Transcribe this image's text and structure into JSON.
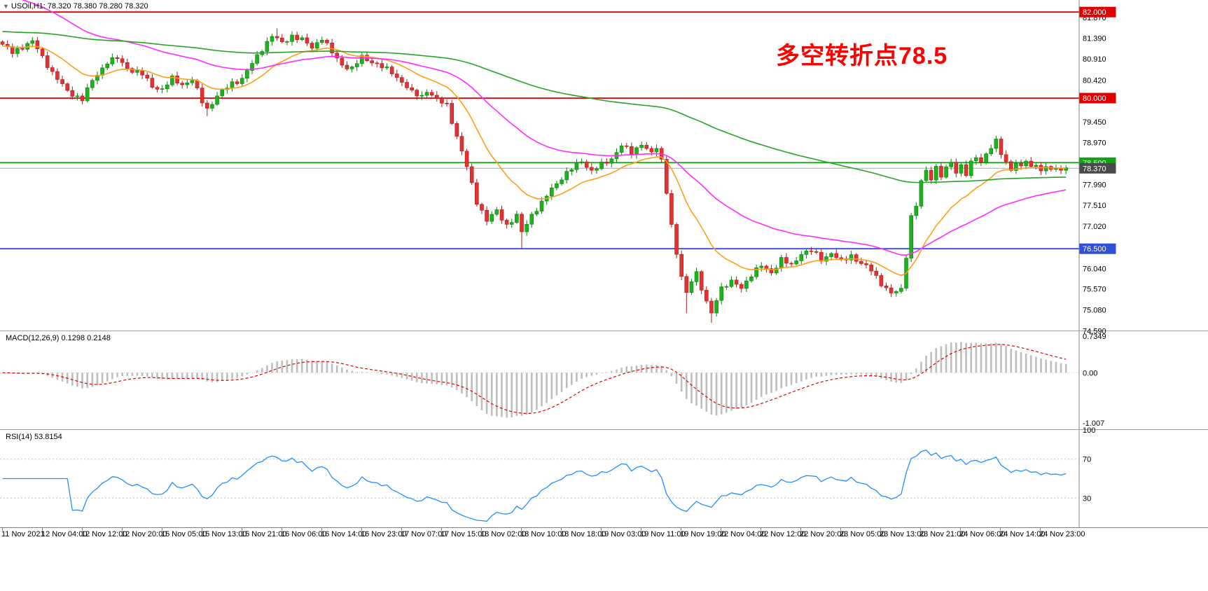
{
  "ui": {
    "dropdown_icon": "▼",
    "symbol_line": "USOil,H1: 78.320 78.380 78.280 78.320"
  },
  "chart_data": {
    "type": "candlestick",
    "symbol": "USOil",
    "timeframe": "H1",
    "ohlc_header": "78.320 78.380 78.280 78.320",
    "n_bars": 214,
    "annotation": {
      "text": "多空转折点78.5",
      "color": "#FF0000"
    },
    "levels": [
      {
        "label": "82.000",
        "value": 82.0,
        "color": "#E00000"
      },
      {
        "label": "80.000",
        "value": 80.0,
        "color": "#E00000"
      },
      {
        "label": "78.500",
        "value": 78.5,
        "color": "#12A312"
      },
      {
        "label": "76.500",
        "value": 76.5,
        "color": "#3050D8"
      }
    ],
    "current_price": {
      "label": "78.370",
      "value": 78.37,
      "color": "#4A4A4A"
    },
    "y_axis": {
      "ticks": [
        {
          "label": "81.870",
          "value": 81.87
        },
        {
          "label": "81.390",
          "value": 81.39
        },
        {
          "label": "80.910",
          "value": 80.91
        },
        {
          "label": "80.420",
          "value": 80.42
        },
        {
          "label": "79.450",
          "value": 79.45
        },
        {
          "label": "78.970",
          "value": 78.97
        },
        {
          "label": "77.990",
          "value": 77.99
        },
        {
          "label": "77.510",
          "value": 77.51
        },
        {
          "label": "77.020",
          "value": 77.02
        },
        {
          "label": "76.040",
          "value": 76.04
        },
        {
          "label": "75.570",
          "value": 75.57
        },
        {
          "label": "75.080",
          "value": 75.08
        },
        {
          "label": "74.590",
          "value": 74.59
        }
      ]
    },
    "x_axis": {
      "labels": [
        "11 Nov 2021",
        "12 Nov 04:00",
        "12 Nov 12:00",
        "12 Nov 20:00",
        "15 Nov 05:00",
        "15 Nov 13:00",
        "15 Nov 21:00",
        "16 Nov 06:00",
        "16 Nov 14:00",
        "16 Nov 23:00",
        "17 Nov 07:00",
        "17 Nov 15:00",
        "18 Nov 02:00",
        "18 Nov 10:00",
        "18 Nov 18:00",
        "19 Nov 03:00",
        "19 Nov 11:00",
        "19 Nov 19:00",
        "22 Nov 04:00",
        "22 Nov 12:00",
        "22 Nov 20:00",
        "23 Nov 05:00",
        "23 Nov 13:00",
        "23 Nov 21:00",
        "24 Nov 06:00",
        "24 Nov 14:00",
        "24 Nov 23:00"
      ]
    },
    "price_path": [
      [
        0,
        81.25
      ],
      [
        2,
        81.05
      ],
      [
        4,
        81.2
      ],
      [
        6,
        81.32
      ],
      [
        8,
        80.95
      ],
      [
        10,
        80.6
      ],
      [
        13,
        80.15
      ],
      [
        16,
        79.98
      ],
      [
        18,
        80.4
      ],
      [
        21,
        80.85
      ],
      [
        23,
        80.92
      ],
      [
        25,
        80.7
      ],
      [
        28,
        80.55
      ],
      [
        30,
        80.28
      ],
      [
        32,
        80.2
      ],
      [
        34,
        80.45
      ],
      [
        36,
        80.32
      ],
      [
        38,
        80.42
      ],
      [
        40,
        79.92
      ],
      [
        41,
        79.75
      ],
      [
        43,
        80.05
      ],
      [
        46,
        80.35
      ],
      [
        48,
        80.45
      ],
      [
        50,
        80.8
      ],
      [
        52,
        81.15
      ],
      [
        54,
        81.45
      ],
      [
        56,
        81.28
      ],
      [
        58,
        81.45
      ],
      [
        60,
        81.35
      ],
      [
        62,
        81.18
      ],
      [
        64,
        81.4
      ],
      [
        66,
        81.05
      ],
      [
        68,
        80.78
      ],
      [
        70,
        80.68
      ],
      [
        72,
        80.95
      ],
      [
        74,
        80.85
      ],
      [
        76,
        80.72
      ],
      [
        78,
        80.6
      ],
      [
        80,
        80.38
      ],
      [
        82,
        80.12
      ],
      [
        84,
        80.05
      ],
      [
        85,
        80.18
      ],
      [
        87,
        79.95
      ],
      [
        89,
        79.85
      ],
      [
        91,
        79.1
      ],
      [
        93,
        78.4
      ],
      [
        95,
        77.6
      ],
      [
        97,
        77.15
      ],
      [
        99,
        77.38
      ],
      [
        101,
        77.05
      ],
      [
        103,
        77.25
      ],
      [
        104,
        76.88
      ],
      [
        106,
        77.3
      ],
      [
        108,
        77.55
      ],
      [
        110,
        77.9
      ],
      [
        112,
        78.15
      ],
      [
        114,
        78.35
      ],
      [
        116,
        78.55
      ],
      [
        118,
        78.3
      ],
      [
        120,
        78.45
      ],
      [
        122,
        78.6
      ],
      [
        124,
        78.9
      ],
      [
        126,
        78.72
      ],
      [
        128,
        78.95
      ],
      [
        130,
        78.7
      ],
      [
        131,
        78.85
      ],
      [
        132,
        78.55
      ],
      [
        133,
        77.85
      ],
      [
        134,
        77.05
      ],
      [
        135,
        76.35
      ],
      [
        136,
        75.85
      ],
      [
        137,
        75.45
      ],
      [
        138,
        75.8
      ],
      [
        139,
        75.95
      ],
      [
        140,
        75.55
      ],
      [
        141,
        75.25
      ],
      [
        142,
        74.98
      ],
      [
        143,
        75.35
      ],
      [
        144,
        75.6
      ],
      [
        146,
        75.72
      ],
      [
        148,
        75.6
      ],
      [
        150,
        75.9
      ],
      [
        152,
        76.1
      ],
      [
        154,
        75.95
      ],
      [
        156,
        76.25
      ],
      [
        158,
        76.1
      ],
      [
        160,
        76.4
      ],
      [
        162,
        76.45
      ],
      [
        164,
        76.25
      ],
      [
        166,
        76.4
      ],
      [
        168,
        76.2
      ],
      [
        170,
        76.35
      ],
      [
        172,
        76.15
      ],
      [
        174,
        76.0
      ],
      [
        176,
        75.7
      ],
      [
        178,
        75.45
      ],
      [
        180,
        75.55
      ],
      [
        181,
        76.35
      ],
      [
        182,
        77.25
      ],
      [
        183,
        77.5
      ],
      [
        184,
        78.05
      ],
      [
        185,
        78.3
      ],
      [
        186,
        78.15
      ],
      [
        187,
        78.4
      ],
      [
        188,
        78.2
      ],
      [
        190,
        78.5
      ],
      [
        191,
        78.28
      ],
      [
        192,
        78.45
      ],
      [
        193,
        78.25
      ],
      [
        194,
        78.48
      ],
      [
        195,
        78.62
      ],
      [
        196,
        78.5
      ],
      [
        197,
        78.72
      ],
      [
        198,
        78.88
      ],
      [
        199,
        79.0
      ],
      [
        200,
        78.7
      ],
      [
        201,
        78.48
      ],
      [
        202,
        78.35
      ],
      [
        203,
        78.52
      ],
      [
        204,
        78.4
      ],
      [
        205,
        78.55
      ],
      [
        206,
        78.35
      ],
      [
        207,
        78.48
      ],
      [
        208,
        78.32
      ],
      [
        209,
        78.42
      ],
      [
        210,
        78.35
      ],
      [
        211,
        78.3
      ],
      [
        212,
        78.36
      ],
      [
        213,
        78.37
      ]
    ],
    "wick_low_overrides": {
      "41": 79.58,
      "104": 76.5,
      "137": 75.0,
      "142": 74.78
    },
    "wick_high_overrides": {
      "55": 81.62,
      "199": 79.06
    },
    "moving_averages": [
      {
        "name": "ma-fast-orange",
        "color": "#FF9E1B",
        "period": 16,
        "seed": 81.2
      },
      {
        "name": "ma-mid-magenta",
        "color": "#FF2BFF",
        "period": 48,
        "seed": 82.55
      },
      {
        "name": "ma-slow-green",
        "color": "#27A427",
        "period": 160,
        "seed": 81.55
      }
    ],
    "candle_colors": {
      "up": "#1CB41C",
      "up_stroke": "#0E7F0E",
      "down": "#E53131",
      "down_stroke": "#A81D1D"
    },
    "indicators": {
      "macd": {
        "label": "MACD(12,26,9) 0.1298 0.2148",
        "fast": 12,
        "slow": 26,
        "signal": 9,
        "histogram_color": "#BEBEBE",
        "signal_color": "#E00000",
        "ticks": [
          {
            "label": "0.7349",
            "value": 0.7349
          },
          {
            "label": "0.00",
            "value": 0
          },
          {
            "label": "-1.007",
            "value": -1.007
          }
        ]
      },
      "rsi": {
        "label": "RSI(14) 53.8154",
        "period": 14,
        "color": "#1E90FF",
        "levels": [
          70,
          30
        ],
        "ticks": [
          {
            "label": "100",
            "value": 100
          },
          {
            "label": "70",
            "value": 70
          },
          {
            "label": "30",
            "value": 30
          }
        ]
      }
    }
  }
}
